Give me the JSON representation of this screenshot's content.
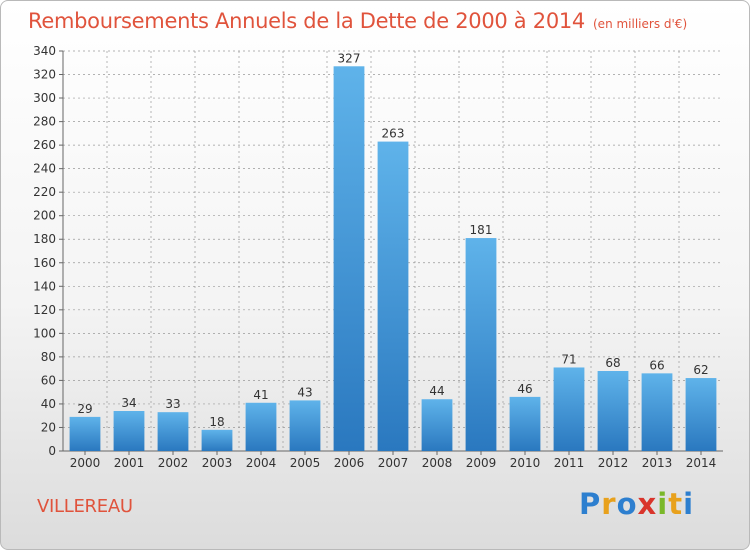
{
  "title": "Remboursements Annuels de la Dette de 2000 à 2014",
  "unit": "(en milliers d'€)",
  "commune": "VILLEREAU",
  "logo": {
    "letters": [
      "P",
      "r",
      "o",
      "x",
      "i",
      "t",
      "i"
    ],
    "colors": [
      "#2d7fcf",
      "#e8a11c",
      "#2d7fcf",
      "#d9342b",
      "#7ab829",
      "#e8a11c",
      "#2d7fcf"
    ]
  },
  "colors": {
    "bar_top": "#5fb3ea",
    "bar_bottom": "#2a78bf",
    "title": "#e0533c",
    "grid": "#999999"
  },
  "chart_data": {
    "type": "bar",
    "title": "Remboursements Annuels de la Dette de 2000 à 2014",
    "categories": [
      "2000",
      "2001",
      "2002",
      "2003",
      "2004",
      "2005",
      "2006",
      "2007",
      "2008",
      "2009",
      "2010",
      "2011",
      "2012",
      "2013",
      "2014"
    ],
    "values": [
      29,
      34,
      33,
      18,
      41,
      43,
      327,
      263,
      44,
      181,
      46,
      71,
      68,
      66,
      62
    ],
    "ylim": [
      0,
      340
    ],
    "yticks": [
      0,
      20,
      40,
      60,
      80,
      100,
      120,
      140,
      160,
      180,
      200,
      220,
      240,
      260,
      280,
      300,
      320,
      340
    ],
    "grid": true,
    "legend": "none"
  }
}
